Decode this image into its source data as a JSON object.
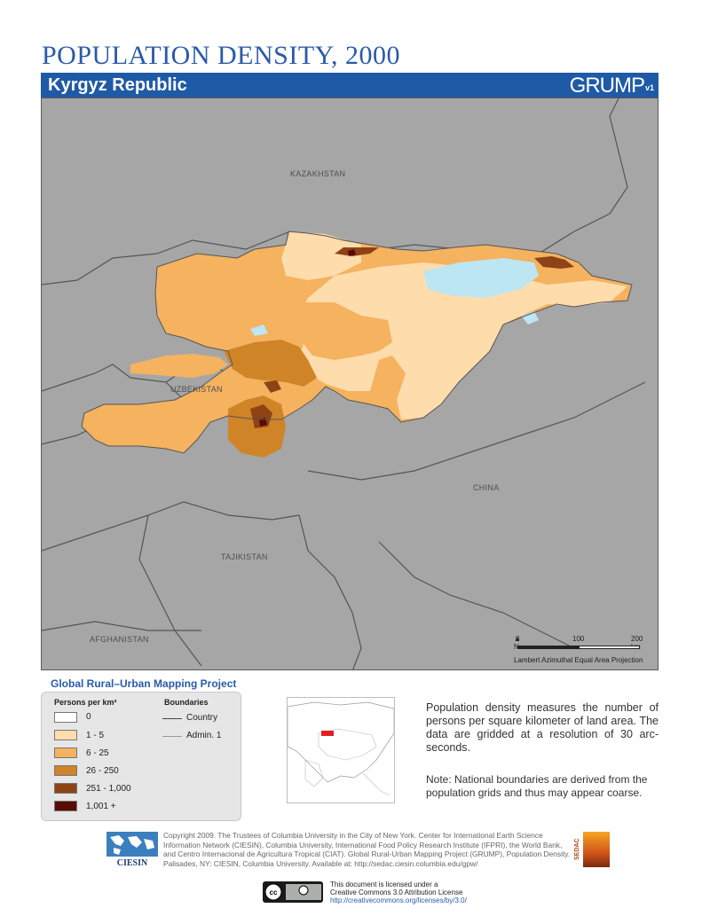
{
  "header": {
    "title": "POPULATION DENSITY, 2000",
    "country": "Kyrgyz Republic",
    "brand": "GRUMP",
    "brand_version": "v1"
  },
  "map": {
    "labels": {
      "kazakhstan": "KAZAKHSTAN",
      "uzbekistan": "UZBEKISTAN",
      "china": "CHINA",
      "tajikistan": "TAJIKISTAN",
      "afghanistan": "AFGHANISTAN"
    },
    "scale": {
      "ticks": [
        "0",
        "100",
        "200 km"
      ],
      "north": "N",
      "projection": "Lambert Azimuthal Equal Area Projection"
    },
    "colors": {
      "background": "#a6a6a6",
      "water": "#bde6f3",
      "class_0": "#ffffff",
      "class_1_5": "#fedcac",
      "class_6_25": "#f5b25f",
      "class_26_250": "#d08428",
      "class_251_1000": "#8e4316",
      "class_1001": "#5a0c04"
    }
  },
  "legend": {
    "project_title": "Global Rural–Urban Mapping Project",
    "density_header": "Persons per km²",
    "boundaries_header": "Boundaries",
    "classes": [
      {
        "label": "0",
        "color": "#ffffff"
      },
      {
        "label": "1 - 5",
        "color": "#fedcac"
      },
      {
        "label": "6 - 25",
        "color": "#f5b25f"
      },
      {
        "label": "26 - 250",
        "color": "#d08428"
      },
      {
        "label": "251 - 1,000",
        "color": "#8e4316"
      },
      {
        "label": "1,001 +",
        "color": "#5a0c04"
      }
    ],
    "boundaries": [
      {
        "label": "Country",
        "color": "#444444"
      },
      {
        "label": "Admin. 1",
        "color": "#999999"
      }
    ]
  },
  "description": "Population density measures the number of persons per square kilometer of land area. The data are gridded at a resolution of 30 arc-seconds.",
  "note": "Note: National boundaries are derived from the population grids and thus may appear coarse.",
  "footer": {
    "ciesin": "CIESIN",
    "sedac": "SEDAC",
    "copyright": "Copyright 2009. The Trustees of Columbia University in the City of New York. Center for International Earth Science Information Network (CIESIN), Columbia University, International Food Policy Research Institute (IFPRI), the World Bank, and Centro Internacional de Agricultura Tropical (CIAT). Global Rural-Urban Mapping Project (GRUMP), Population Density. Palisades, NY: CIESIN, Columbia University. Available at: http://sedac.ciesin.columbia.edu/gpw/",
    "license_line1": "This document is licensed under a",
    "license_line2": "Creative Commons 3.0 Attribution License",
    "license_url": "http://creativecommons.org/licenses/by/3.0/"
  }
}
